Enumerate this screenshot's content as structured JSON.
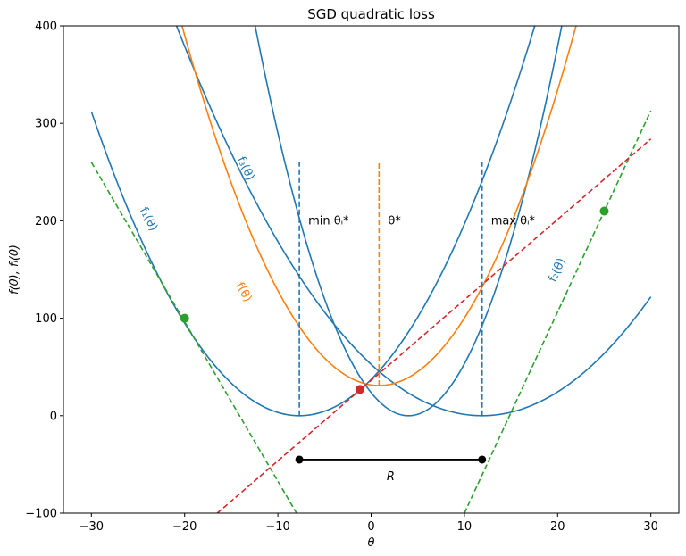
{
  "chart_data": {
    "type": "line",
    "title": "SGD quadratic loss",
    "xlabel": "θ",
    "ylabel": "f(θ), fᵢ(θ)",
    "xlim": [
      -33,
      33
    ],
    "ylim": [
      -100,
      400
    ],
    "xticks": [
      -30,
      -20,
      -10,
      0,
      10,
      20,
      30
    ],
    "yticks": [
      -100,
      0,
      100,
      200,
      300,
      400
    ],
    "grid": false,
    "colors": {
      "blue": "#1f77b4",
      "orange": "#ff7f0e",
      "green": "#2ca02c",
      "red": "#d62728",
      "black": "#000000"
    },
    "curves": [
      {
        "label": "f₁(θ)",
        "kind": "quadratic",
        "a": 0.6275,
        "center": -7.7,
        "min": 0,
        "color": "#1f77b4"
      },
      {
        "label": "f₃(θ)",
        "kind": "quadratic",
        "a": 1.48,
        "center": 4.0,
        "min": 0,
        "color": "#1f77b4"
      },
      {
        "label": "f₂(θ)",
        "kind": "quadratic",
        "a": 0.3725,
        "center": 11.9,
        "min": 0,
        "color": "#1f77b4"
      },
      {
        "label": "f(θ)",
        "kind": "quadratic",
        "a": 0.8267,
        "center": 0.85,
        "min": 31,
        "color": "#ff7f0e"
      }
    ],
    "tangent_lines": [
      {
        "color": "#2ca02c",
        "x": [
          -30,
          -8
        ],
        "y": [
          260,
          -100
        ]
      },
      {
        "color": "#2ca02c",
        "x": [
          10,
          30
        ],
        "y": [
          -100,
          313
        ]
      },
      {
        "color": "#d62728",
        "x": [
          -16.5,
          30
        ],
        "y": [
          -100,
          284
        ]
      }
    ],
    "points": [
      {
        "x": -20,
        "y": 100,
        "color": "#2ca02c"
      },
      {
        "x": 25,
        "y": 210,
        "color": "#2ca02c"
      },
      {
        "x": -1.2,
        "y": 27,
        "color": "#d62728"
      }
    ],
    "vlines": [
      {
        "x": -7.7,
        "y": [
          0,
          260
        ],
        "color": "#1f77b4",
        "label": "min θᵢ*"
      },
      {
        "x": 0.85,
        "y": [
          31,
          260
        ],
        "color": "#ff7f0e",
        "label": "θ*"
      },
      {
        "x": 11.9,
        "y": [
          0,
          260
        ],
        "color": "#1f77b4",
        "label": "max θᵢ*"
      }
    ],
    "range_segment": {
      "x": [
        -7.7,
        11.9
      ],
      "y": -45,
      "label": "R",
      "color": "#000000"
    }
  }
}
